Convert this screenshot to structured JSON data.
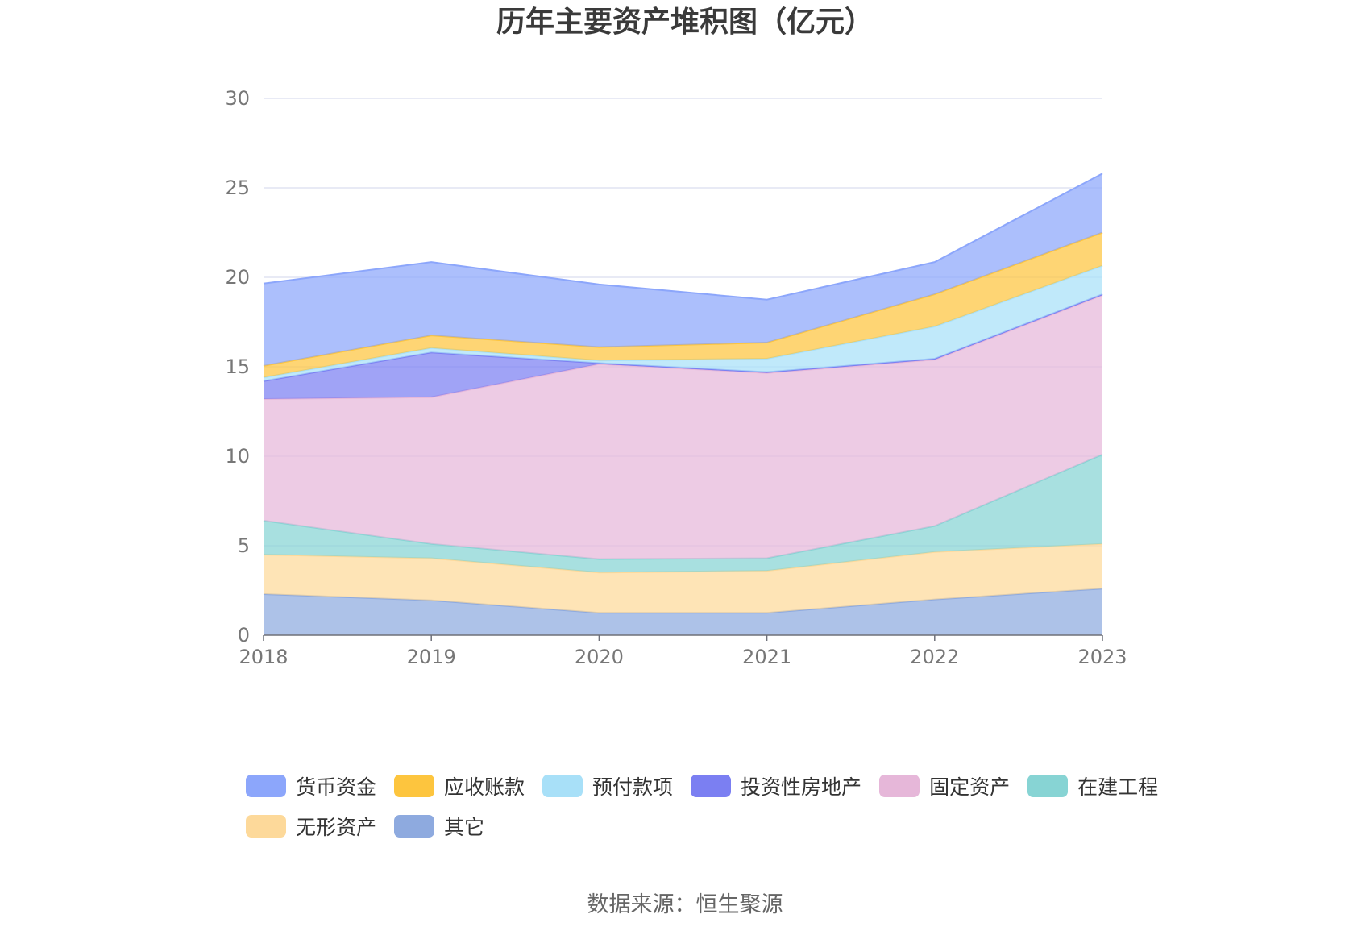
{
  "chart_data": {
    "type": "area",
    "stacked": true,
    "title": "历年主要资产堆积图（亿元）",
    "categories": [
      "2018",
      "2019",
      "2020",
      "2021",
      "2022",
      "2023"
    ],
    "ylim": [
      0,
      30
    ],
    "yticks": [
      0,
      5,
      10,
      15,
      20,
      25,
      30
    ],
    "grid": true,
    "legend_position": "bottom",
    "series": [
      {
        "name": "其它",
        "color": "#8eaadf",
        "values": [
          2.3,
          1.95,
          1.25,
          1.25,
          2.0,
          2.6
        ]
      },
      {
        "name": "无形资产",
        "color": "#fdd99a",
        "values": [
          2.2,
          2.35,
          2.25,
          2.35,
          2.65,
          2.5
        ]
      },
      {
        "name": "在建工程",
        "color": "#87d4d4",
        "values": [
          1.9,
          0.8,
          0.75,
          0.7,
          1.45,
          5.0
        ]
      },
      {
        "name": "固定资产",
        "color": "#e6b7d9",
        "values": [
          6.8,
          8.2,
          10.9,
          10.35,
          9.3,
          8.9
        ]
      },
      {
        "name": "投资性房地产",
        "color": "#7b7ff2",
        "values": [
          1.0,
          2.5,
          0.05,
          0.05,
          0.05,
          0.05
        ]
      },
      {
        "name": "预付款项",
        "color": "#a8e0f8",
        "values": [
          0.2,
          0.25,
          0.15,
          0.75,
          1.8,
          1.6
        ]
      },
      {
        "name": "应收账款",
        "color": "#fdc53e",
        "values": [
          0.65,
          0.7,
          0.75,
          0.9,
          1.8,
          1.85
        ]
      },
      {
        "name": "货币资金",
        "color": "#8ca6fb",
        "values": [
          4.6,
          4.1,
          3.5,
          2.4,
          1.8,
          3.3
        ]
      }
    ]
  },
  "legend": {
    "rows": [
      [
        "货币资金",
        "应收账款",
        "预付款项",
        "投资性房地产",
        "固定资产",
        "在建工程"
      ],
      [
        "无形资产",
        "其它"
      ]
    ]
  },
  "source": "数据来源：恒生聚源"
}
